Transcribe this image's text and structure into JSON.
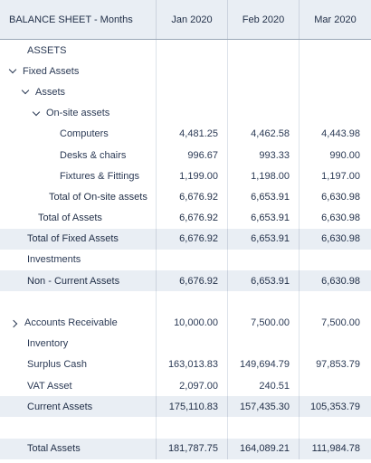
{
  "header": {
    "title": "BALANCE SHEET - Months",
    "columns": [
      "Jan 2020",
      "Feb 2020",
      "Mar 2020"
    ]
  },
  "rows": [
    {
      "label": "ASSETS",
      "values": [
        "",
        "",
        ""
      ]
    },
    {
      "label": "Fixed Assets",
      "values": [
        "",
        "",
        ""
      ],
      "icon": "chevron-down-icon"
    },
    {
      "label": "Assets",
      "values": [
        "",
        "",
        ""
      ],
      "icon": "chevron-down-icon"
    },
    {
      "label": "On-site assets",
      "values": [
        "",
        "",
        ""
      ],
      "icon": "chevron-down-icon"
    },
    {
      "label": "Computers",
      "values": [
        "4,481.25",
        "4,462.58",
        "4,443.98"
      ]
    },
    {
      "label": "Desks & chairs",
      "values": [
        "996.67",
        "993.33",
        "990.00"
      ]
    },
    {
      "label": "Fixtures & Fittings",
      "values": [
        "1,199.00",
        "1,198.00",
        "1,197.00"
      ]
    },
    {
      "label": "Total of On-site assets",
      "values": [
        "6,676.92",
        "6,653.91",
        "6,630.98"
      ]
    },
    {
      "label": "Total of Assets",
      "values": [
        "6,676.92",
        "6,653.91",
        "6,630.98"
      ]
    },
    {
      "label": "Total of Fixed Assets",
      "values": [
        "6,676.92",
        "6,653.91",
        "6,630.98"
      ]
    },
    {
      "label": "Investments",
      "values": [
        "",
        "",
        ""
      ]
    },
    {
      "label": "Non - Current Assets",
      "values": [
        "6,676.92",
        "6,653.91",
        "6,630.98"
      ]
    },
    {
      "label": "",
      "values": [
        "",
        "",
        ""
      ]
    },
    {
      "label": "Accounts Receivable",
      "values": [
        "10,000.00",
        "7,500.00",
        "7,500.00"
      ],
      "icon": "chevron-right-icon"
    },
    {
      "label": "Inventory",
      "values": [
        "",
        "",
        ""
      ]
    },
    {
      "label": "Surplus Cash",
      "values": [
        "163,013.83",
        "149,694.79",
        "97,853.79"
      ]
    },
    {
      "label": "VAT Asset",
      "values": [
        "2,097.00",
        "240.51",
        ""
      ]
    },
    {
      "label": "Current Assets",
      "values": [
        "175,110.83",
        "157,435.30",
        "105,353.79"
      ]
    },
    {
      "label": "",
      "values": [
        "",
        "",
        ""
      ]
    },
    {
      "label": "Total Assets",
      "values": [
        "181,787.75",
        "164,089.21",
        "111,984.78"
      ]
    }
  ]
}
